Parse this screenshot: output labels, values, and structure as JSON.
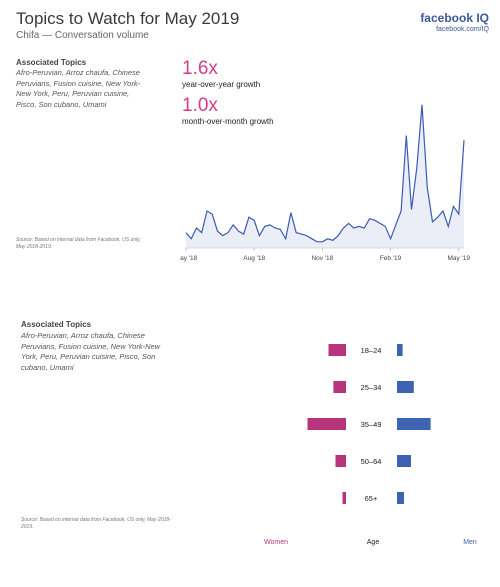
{
  "header": {
    "title": "Topics to Watch for May 2019",
    "subtitle": "Chifa — Conversation volume",
    "brand": "facebook IQ",
    "brand_url": "facebook.com/IQ"
  },
  "top_section": {
    "associated_title": "Associated Topics",
    "associated_topics": "Afro-Peruvian, Arroz chaufa, Chinese Peruvians, Fusion cuisine, New York-New York, Peru, Peruvian cuisine, Pisco, Son cubano, Umami",
    "source": "Source: Based on internal data from Facebook, US only, May 2018-2019.",
    "metrics": [
      {
        "value": "1.6x",
        "label": "year-over-year growth"
      },
      {
        "value": "1.0x",
        "label": "month-over-month growth"
      }
    ]
  },
  "bottom_section": {
    "associated_title": "Associated Topics",
    "associated_topics": "Afro-Peruvian, Arroz chaufa, Chinese Peruvians, Fusion cuisine, New York-New York, Peru, Peruvian cuisine, Pisco, Son cubano, Umami",
    "source": "Source: Based on internal data from Facebook, US only, May 2018-2019."
  },
  "colors": {
    "line": "#3b5bb5",
    "area": "#eceef7",
    "women": "#b8357d",
    "men": "#3e63b3"
  },
  "chart_data": [
    {
      "type": "area",
      "x_tick_labels": [
        "May '18",
        "Aug '18",
        "Nov '18",
        "Feb '19",
        "May '19"
      ],
      "x_tick_index": [
        0,
        13,
        26,
        39,
        52
      ],
      "values": [
        1.0,
        0.6,
        1.3,
        1.0,
        2.4,
        2.2,
        1.1,
        0.8,
        1.0,
        1.5,
        1.1,
        0.9,
        2.0,
        1.8,
        0.8,
        1.4,
        1.5,
        1.3,
        1.2,
        0.6,
        2.3,
        1.0,
        0.9,
        0.8,
        0.6,
        0.4,
        0.4,
        0.6,
        0.5,
        0.8,
        1.3,
        1.6,
        1.3,
        1.4,
        1.3,
        1.9,
        1.8,
        1.6,
        1.4,
        0.6,
        1.5,
        2.4,
        7.3,
        2.5,
        5.2,
        9.3,
        3.9,
        1.7,
        2.0,
        2.4,
        1.4,
        2.7,
        2.2,
        7.0
      ],
      "ylim": [
        0,
        10
      ],
      "grid": false
    },
    {
      "type": "bar",
      "orientation": "horizontal-diverging",
      "categories": [
        "18–24",
        "25–34",
        "35–49",
        "50–64",
        "65+"
      ],
      "series": [
        {
          "name": "Women",
          "values": [
            2.5,
            1.8,
            5.5,
            1.5,
            0.5
          ]
        },
        {
          "name": "Men",
          "values": [
            0.8,
            2.4,
            4.8,
            2.0,
            1.0
          ]
        }
      ],
      "axis_label": "Age",
      "xlim": [
        0,
        6
      ]
    }
  ]
}
